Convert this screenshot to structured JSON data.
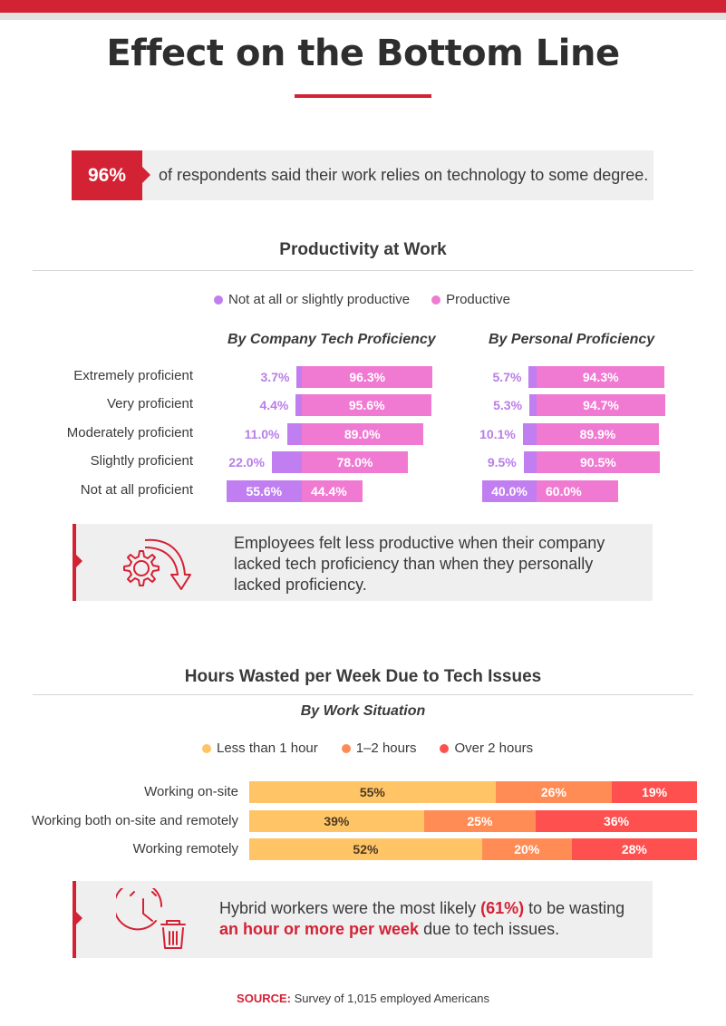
{
  "title": "Effect on the Bottom Line",
  "colors": {
    "accent": "#d42235",
    "not_productive": "#c07ef0",
    "productive": "#f07ad2",
    "less_than_1": "#ffc466",
    "one_to_two": "#ff8c55",
    "over_2": "#ff5050"
  },
  "stat": {
    "value": "96%",
    "text": "of respondents said their work relies on technology to some degree."
  },
  "productivity": {
    "title": "Productivity at Work",
    "legend": [
      "Not at all or slightly productive",
      "Productive"
    ],
    "note": {
      "icon": "gear-down-arrow-icon",
      "text": "Employees felt less productive when their company lacked tech proficiency than when they personally lacked proficiency."
    }
  },
  "hours": {
    "title": "Hours Wasted per Week Due to Tech Issues",
    "subtitle": "By Work Situation",
    "legend": [
      "Less than 1 hour",
      "1–2 hours",
      "Over 2 hours"
    ],
    "note": {
      "icon": "clock-trash-icon",
      "text_pre": "Hybrid workers were the most likely ",
      "text_hl1": "(61%)",
      "text_mid": " to be wasting ",
      "text_hl2": "an hour or more per week",
      "text_post": " due to tech issues."
    }
  },
  "chart_data": [
    {
      "type": "bar",
      "orientation": "horizontal-stacked",
      "title": "By Company Tech Proficiency",
      "categories": [
        "Extremely proficient",
        "Very proficient",
        "Moderately proficient",
        "Slightly proficient",
        "Not at all proficient"
      ],
      "series": [
        {
          "name": "Not at all or slightly productive",
          "values": [
            3.7,
            4.4,
            11.0,
            22.0,
            55.6
          ],
          "labels": [
            "3.7%",
            "4.4%",
            "11.0%",
            "22.0%",
            "55.6%"
          ]
        },
        {
          "name": "Productive",
          "values": [
            96.3,
            95.6,
            89.0,
            78.0,
            44.4
          ],
          "labels": [
            "96.3%",
            "95.6%",
            "89.0%",
            "78.0%",
            "44.4%"
          ]
        }
      ]
    },
    {
      "type": "bar",
      "orientation": "horizontal-stacked",
      "title": "By Personal Proficiency",
      "categories": [
        "Extremely proficient",
        "Very proficient",
        "Moderately proficient",
        "Slightly proficient",
        "Not at all proficient"
      ],
      "series": [
        {
          "name": "Not at all or slightly productive",
          "values": [
            5.7,
            5.3,
            10.1,
            9.5,
            40.0
          ],
          "labels": [
            "5.7%",
            "5.3%",
            "10.1%",
            "9.5%",
            "40.0%"
          ]
        },
        {
          "name": "Productive",
          "values": [
            94.3,
            94.7,
            89.9,
            90.5,
            60.0
          ],
          "labels": [
            "94.3%",
            "94.7%",
            "89.9%",
            "90.5%",
            "60.0%"
          ]
        }
      ]
    },
    {
      "type": "bar",
      "orientation": "horizontal-stacked-100",
      "title": "By Work Situation",
      "categories": [
        "Working on-site",
        "Working both on-site and remotely",
        "Working remotely"
      ],
      "series": [
        {
          "name": "Less than 1 hour",
          "values": [
            55,
            39,
            52
          ],
          "labels": [
            "55%",
            "39%",
            "52%"
          ]
        },
        {
          "name": "1–2 hours",
          "values": [
            26,
            25,
            20
          ],
          "labels": [
            "26%",
            "25%",
            "20%"
          ]
        },
        {
          "name": "Over 2 hours",
          "values": [
            19,
            36,
            28
          ],
          "labels": [
            "19%",
            "36%",
            "28%"
          ]
        }
      ]
    }
  ],
  "source": {
    "label": "SOURCE:",
    "text": " Survey of 1,015 employed Americans"
  }
}
